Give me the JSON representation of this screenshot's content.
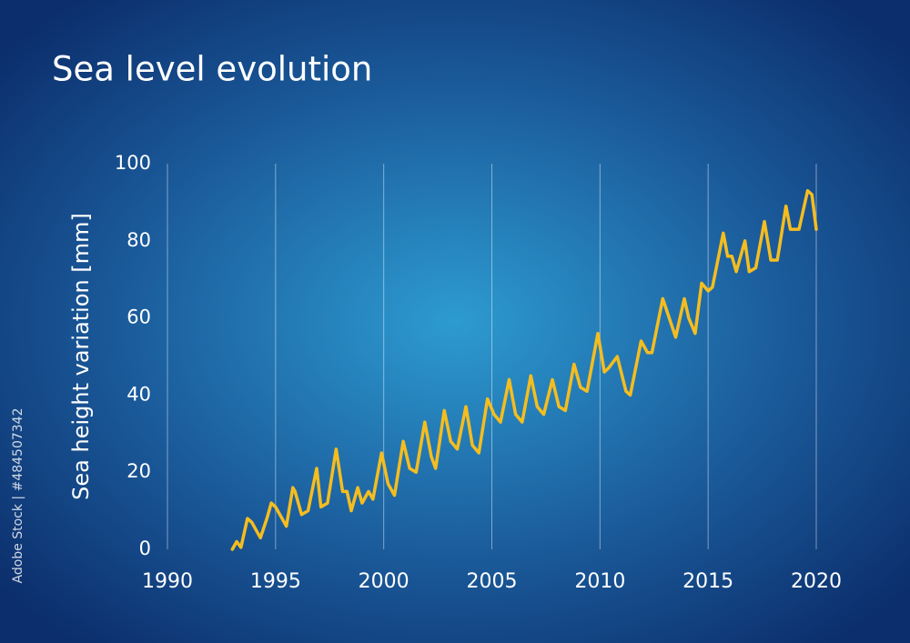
{
  "chart_data": {
    "type": "line",
    "title": "Sea level evolution",
    "y_label": "Sea height variation [mm]",
    "side_label": "Adobe Stock | #484507342",
    "xlim": [
      1990,
      2020
    ],
    "xticks": [
      1990,
      1995,
      2000,
      2005,
      2010,
      2015,
      2020
    ],
    "ylim": [
      0,
      100
    ],
    "yticks": [
      0,
      20,
      40,
      60,
      80,
      100
    ],
    "grid": "x",
    "series": [
      {
        "color": "#f5bd1f",
        "x": [
          1993.0,
          1993.2,
          1993.4,
          1993.7,
          1993.9,
          1994.1,
          1994.3,
          1994.6,
          1994.8,
          1995.0,
          1995.3,
          1995.5,
          1995.8,
          1995.9,
          1996.2,
          1996.5,
          1996.9,
          1997.1,
          1997.4,
          1997.8,
          1998.1,
          1998.3,
          1998.5,
          1998.8,
          1999.0,
          1999.3,
          1999.5,
          1999.9,
          2000.2,
          2000.5,
          2000.9,
          2001.2,
          2001.5,
          2001.9,
          2002.2,
          2002.4,
          2002.8,
          2003.1,
          2003.4,
          2003.8,
          2004.1,
          2004.4,
          2004.8,
          2005.1,
          2005.4,
          2005.8,
          2006.1,
          2006.4,
          2006.8,
          2007.1,
          2007.4,
          2007.8,
          2008.1,
          2008.4,
          2008.8,
          2009.1,
          2009.4,
          2009.9,
          2010.2,
          2010.4,
          2010.8,
          2011.2,
          2011.4,
          2011.9,
          2012.2,
          2012.4,
          2012.9,
          2013.2,
          2013.5,
          2013.9,
          2014.1,
          2014.4,
          2014.7,
          2015.0,
          2015.2,
          2015.7,
          2015.9,
          2016.1,
          2016.3,
          2016.7,
          2016.9,
          2017.2,
          2017.6,
          2017.9,
          2018.2,
          2018.6,
          2018.8,
          2019.2,
          2019.6,
          2019.8,
          2020.0
        ],
        "values": [
          0,
          2,
          0.5,
          8,
          7,
          5,
          3,
          8,
          12,
          11,
          8,
          6,
          16,
          15,
          9,
          10,
          21,
          11,
          12,
          26,
          15,
          15,
          10,
          16,
          12,
          15,
          13,
          25,
          17,
          14,
          28,
          21,
          20,
          33,
          24,
          21,
          36,
          28,
          26,
          37,
          27,
          25,
          39,
          35,
          33,
          44,
          35,
          33,
          45,
          37,
          35,
          44,
          37,
          36,
          48,
          42,
          41,
          56,
          46,
          47,
          50,
          41,
          40,
          54,
          51,
          51,
          65,
          60,
          55,
          65,
          60,
          56,
          69,
          67,
          68,
          82,
          76,
          76,
          72,
          80,
          72,
          73,
          85,
          75,
          75,
          89,
          83,
          83,
          93,
          92,
          83
        ]
      }
    ]
  }
}
